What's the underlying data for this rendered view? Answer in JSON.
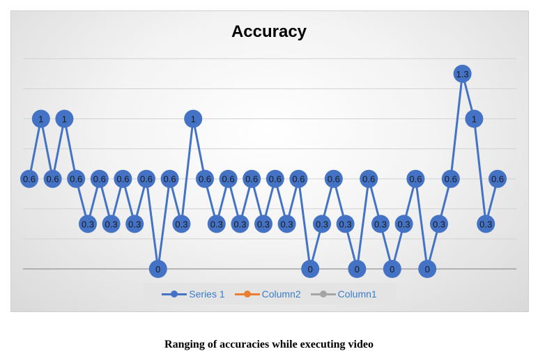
{
  "chart_data": {
    "type": "line",
    "title": "Accuracy",
    "xlabel": "",
    "ylabel": "",
    "ylim": [
      0,
      1.5
    ],
    "grid": true,
    "legend_placement": "bottom",
    "series": [
      {
        "name": "Series 1",
        "color": "#4472c4",
        "values": [
          0.6,
          1,
          0.6,
          1,
          0.6,
          0.3,
          0.6,
          0.3,
          0.6,
          0.3,
          0.6,
          0,
          0.6,
          0.3,
          1,
          0.6,
          0.3,
          0.6,
          0.3,
          0.6,
          0.3,
          0.6,
          0.3,
          0.6,
          0,
          0.3,
          0.6,
          0.3,
          0,
          0.6,
          0.3,
          0,
          0.3,
          0.6,
          0,
          0.3,
          0.6,
          1.3,
          1,
          0.3,
          0.6
        ]
      }
    ]
  },
  "legend": [
    {
      "label": "Series 1",
      "color": "#4472c4"
    },
    {
      "label": "Column2",
      "color": "#ed7d31"
    },
    {
      "label": "Column1",
      "color": "#a5a5a5"
    }
  ],
  "caption": "Ranging of accuracies while executing video"
}
